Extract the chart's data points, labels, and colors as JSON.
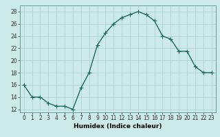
{
  "x": [
    0,
    1,
    2,
    3,
    4,
    5,
    6,
    7,
    8,
    9,
    10,
    11,
    12,
    13,
    14,
    15,
    16,
    17,
    18,
    19,
    20,
    21,
    22,
    23
  ],
  "y": [
    16,
    14,
    14,
    13,
    12.5,
    12.5,
    12,
    15.5,
    18,
    22.5,
    24.5,
    26,
    27,
    27.5,
    28,
    27.5,
    26.5,
    24,
    23.5,
    21.5,
    21.5,
    19,
    18,
    18
  ],
  "line_color": "#1a6b5a",
  "marker": "s",
  "marker_size": 2,
  "bg_color": "#cceae7",
  "grid_color": "#b0d4d0",
  "xlabel": "Humidex (Indice chaleur)",
  "xlim": [
    -0.5,
    23.5
  ],
  "ylim": [
    11.5,
    29
  ],
  "yticks": [
    12,
    14,
    16,
    18,
    20,
    22,
    24,
    26,
    28
  ],
  "xticks": [
    0,
    1,
    2,
    3,
    4,
    5,
    6,
    7,
    8,
    9,
    10,
    11,
    12,
    13,
    14,
    15,
    16,
    17,
    18,
    19,
    20,
    21,
    22,
    23
  ],
  "tick_fontsize": 5.5,
  "xlabel_fontsize": 6.5,
  "line_width": 1.0
}
